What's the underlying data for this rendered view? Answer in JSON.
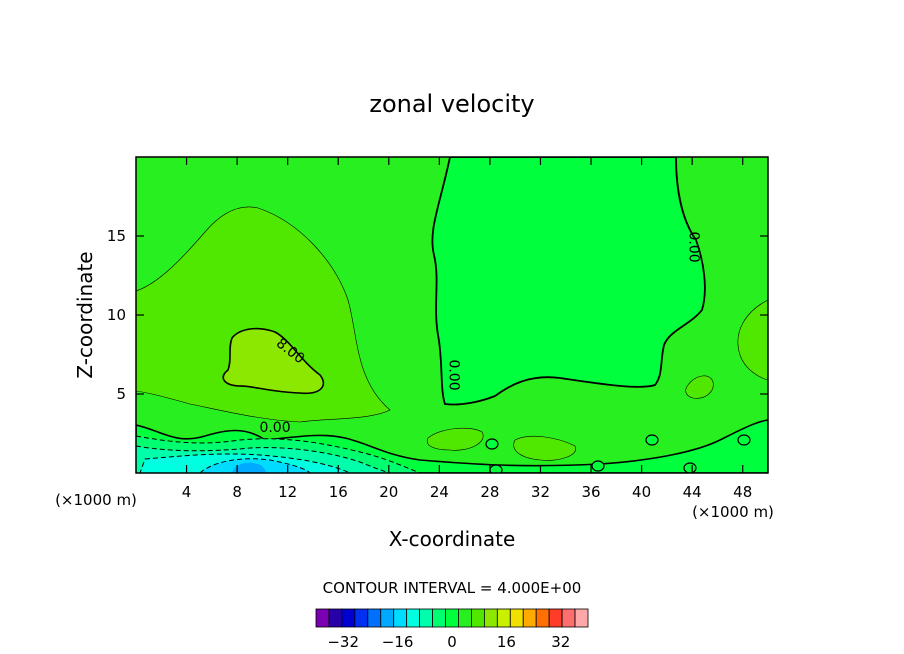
{
  "chart_data": {
    "type": "contour",
    "title": "zonal velocity",
    "xlabel": "X-coordinate",
    "ylabel": "Z-coordinate",
    "x_units": "(×1000 m)",
    "x_range": [
      0,
      50
    ],
    "y_range": [
      0,
      20
    ],
    "x_ticks": [
      4,
      8,
      12,
      16,
      20,
      24,
      28,
      32,
      36,
      40,
      44,
      48
    ],
    "y_ticks": [
      5,
      10,
      15
    ],
    "contour_interval_text": "CONTOUR INTERVAL = 4.000E+00",
    "contour_labels": [
      {
        "text": "0.00",
        "x": 11,
        "z": 2.6
      },
      {
        "text": "8.00",
        "x": 12,
        "z": 7.5
      },
      {
        "text": "0.00",
        "x": 24.8,
        "z": 6.2
      },
      {
        "text": "0.00",
        "x": 43.8,
        "z": 14.3
      }
    ],
    "colorbar": {
      "levels": [
        -40,
        -36,
        -32,
        -28,
        -24,
        -20,
        -16,
        -12,
        -8,
        -4,
        0,
        4,
        8,
        12,
        16,
        20,
        24,
        28,
        32,
        36,
        40
      ],
      "tick_labels": [
        "−32",
        "−16",
        "0",
        "16",
        "32"
      ],
      "tick_values": [
        -32,
        -16,
        0,
        16,
        32
      ],
      "colors": [
        "#7a00b4",
        "#2800a8",
        "#0000d2",
        "#0030f0",
        "#0070ff",
        "#00aaff",
        "#00dcff",
        "#00ffe0",
        "#00ffaa",
        "#00ff70",
        "#00ff3c",
        "#28f020",
        "#50e800",
        "#8ce800",
        "#c8f000",
        "#f0e000",
        "#ffaa00",
        "#ff7000",
        "#ff3c28",
        "#ff6e6e",
        "#ffa8a8"
      ]
    },
    "field_colors": {
      "bg": "#28f020",
      "pos_light": "#50e800",
      "pos_mid": "#8ce800",
      "neg_light": "#00ff3c",
      "neg_mid": "#00ff70",
      "neg_strong": "#00ffaa",
      "neg_more": "#00ffe0",
      "neg_max": "#00dcff",
      "neg_core": "#00aaff"
    }
  }
}
